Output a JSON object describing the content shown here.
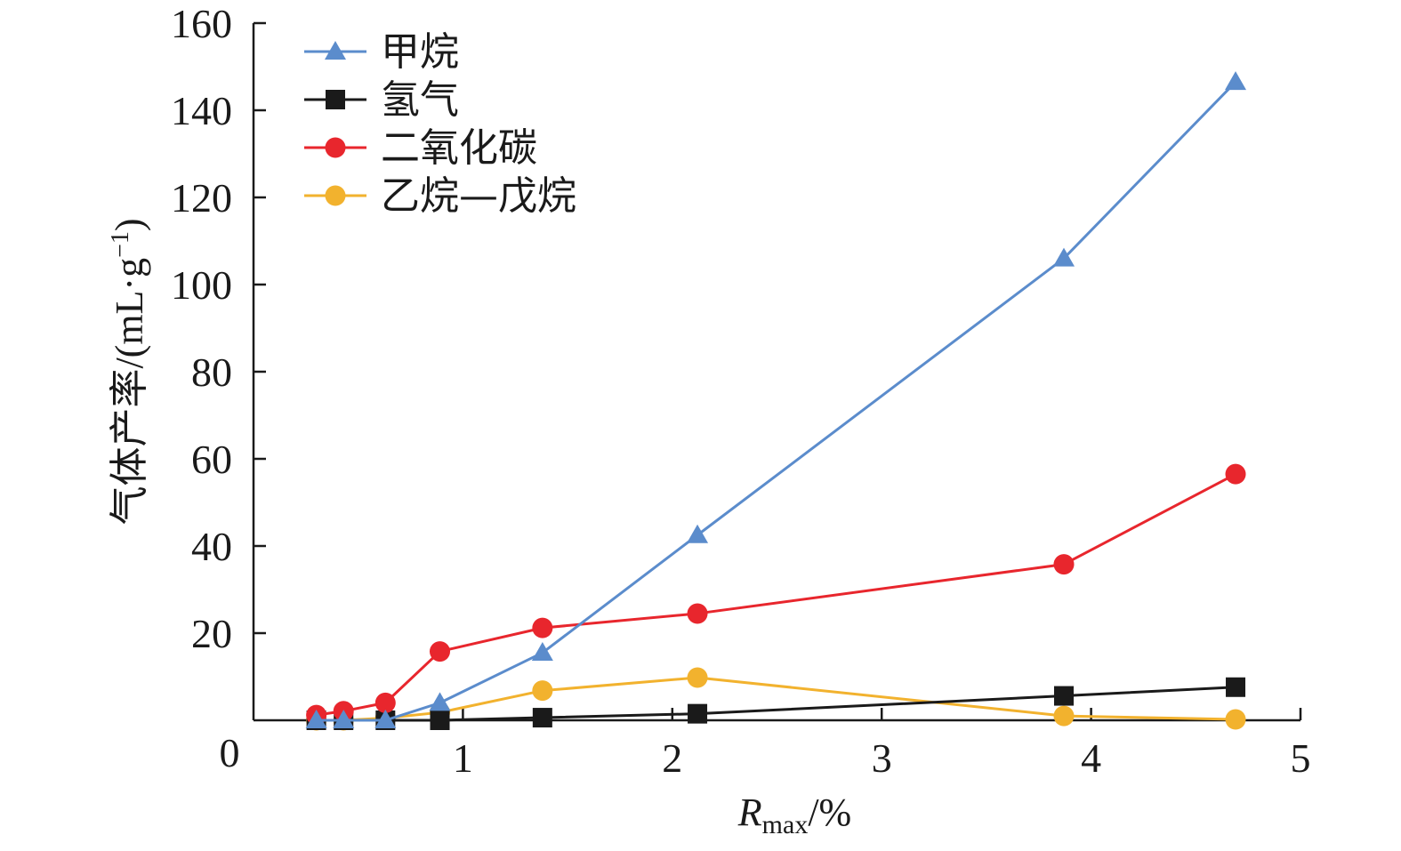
{
  "chart_data": {
    "type": "line",
    "xlabel": {
      "main": "R",
      "sub": "max",
      "suffix": "/%"
    },
    "ylabel": {
      "chinese": "气体产率",
      "unit_open": "/(mL·g",
      "unit_sup": "−1",
      "unit_close": ")"
    },
    "xlim": [
      0,
      5
    ],
    "ylim": [
      0,
      160
    ],
    "x_ticks": [
      "1",
      "2",
      "3",
      "4",
      "5"
    ],
    "y_ticks": [
      "20",
      "40",
      "60",
      "80",
      "100",
      "120",
      "140",
      "160"
    ],
    "origin_label": "0",
    "grid": false,
    "legend_position": "top-left",
    "series": [
      {
        "name": "甲烷",
        "color": "#5b8ccc",
        "marker": "triangle",
        "x": [
          0.3,
          0.43,
          0.63,
          0.89,
          1.38,
          2.12,
          3.87,
          4.69
        ],
        "y": [
          0,
          0,
          0,
          4,
          15.5,
          42.5,
          106,
          146.5
        ]
      },
      {
        "name": "氢气",
        "color": "#1a1a1a",
        "marker": "square",
        "x": [
          0.3,
          0.43,
          0.63,
          0.89,
          1.38,
          2.12,
          3.87,
          4.69
        ],
        "y": [
          0,
          0,
          0,
          0,
          0.6,
          1.5,
          5.6,
          7.6
        ]
      },
      {
        "name": "二氧化碳",
        "color": "#e8262d",
        "marker": "circle",
        "x": [
          0.3,
          0.43,
          0.63,
          0.89,
          1.38,
          2.12,
          3.87,
          4.69
        ],
        "y": [
          1.2,
          2.1,
          4,
          15.8,
          21.2,
          24.5,
          35.8,
          56.5
        ]
      },
      {
        "name": "乙烷—戊烷",
        "color": "#f2b22e",
        "marker": "circle",
        "x": [
          0.3,
          0.43,
          0.63,
          0.89,
          1.38,
          2.12,
          3.87,
          4.69
        ],
        "y": [
          0,
          0,
          0.5,
          1.8,
          6.8,
          9.8,
          1,
          0.2
        ]
      }
    ]
  }
}
